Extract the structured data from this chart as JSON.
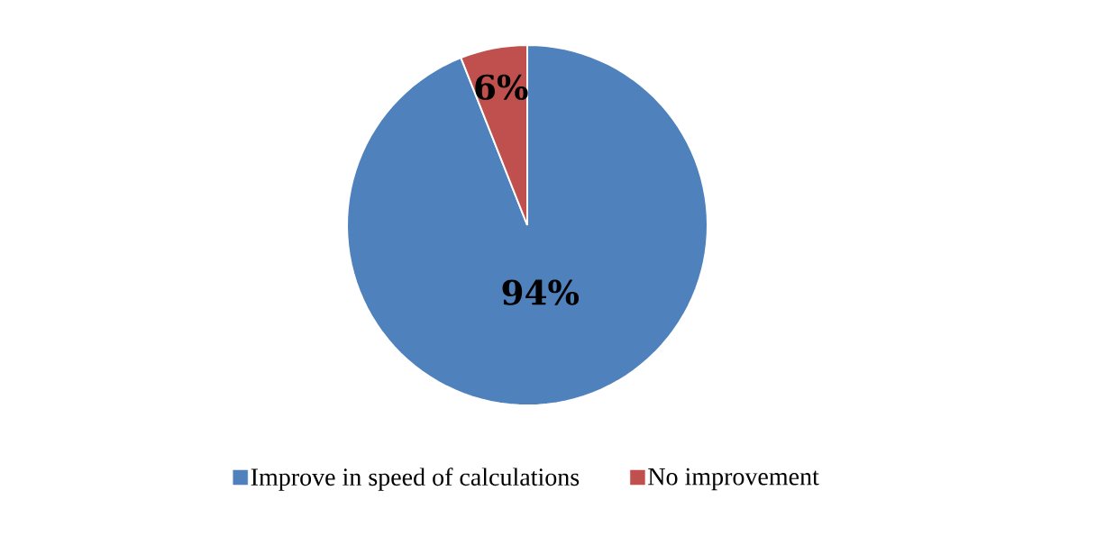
{
  "chart_data": {
    "type": "pie",
    "categories": [
      "Improve in speed of calculations",
      "No improvement"
    ],
    "values": [
      94,
      6
    ],
    "colors": [
      "#4f81bd",
      "#c0504d"
    ],
    "value_labels": [
      "94%",
      "6%"
    ],
    "legend": "bottom"
  }
}
